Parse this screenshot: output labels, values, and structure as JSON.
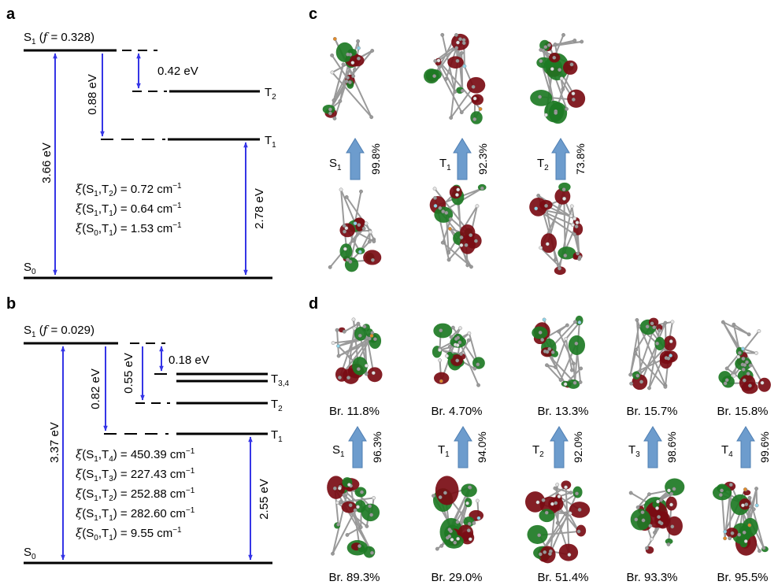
{
  "panels": {
    "a": {
      "letter": "a",
      "s1": {
        "state": "S",
        "sub": "1",
        "f_label": "f",
        "f_value": " = 0.328)"
      },
      "s0": {
        "state": "S",
        "sub": "0"
      },
      "t1": {
        "state": "T",
        "sub": "1"
      },
      "t2": {
        "state": "T",
        "sub": "2"
      },
      "gaps": {
        "s1_s0": "3.66 eV",
        "s1_t1": "0.88 eV",
        "s1_t2": "0.42 eV",
        "t1_s0": "2.78 eV"
      },
      "soc": [
        {
          "bra": "S",
          "bsub": "1",
          "ket": "T",
          "ksub": "2",
          "value": ") = 0.72 cm",
          "exp": "−1"
        },
        {
          "bra": "S",
          "bsub": "1",
          "ket": "T",
          "ksub": "1",
          "value": ") = 0.64 cm",
          "exp": "−1"
        },
        {
          "bra": "S",
          "bsub": "0",
          "ket": "T",
          "ksub": "1",
          "value": ") = 1.53 cm",
          "exp": "−1"
        }
      ]
    },
    "b": {
      "letter": "b",
      "s1": {
        "state": "S",
        "sub": "1",
        "f_label": "f",
        "f_value": " = 0.029)"
      },
      "s0": {
        "state": "S",
        "sub": "0"
      },
      "t1": {
        "state": "T",
        "sub": "1"
      },
      "t2": {
        "state": "T",
        "sub": "2"
      },
      "t34": {
        "state": "T",
        "sub": "3,4"
      },
      "gaps": {
        "s1_s0": "3.37 eV",
        "s1_t1": "0.82 eV",
        "s1_t2": "0.55 eV",
        "s1_t34": "0.18 eV",
        "t1_s0": "2.55 eV"
      },
      "soc": [
        {
          "bra": "S",
          "bsub": "1",
          "ket": "T",
          "ksub": "4",
          "value": ") = 450.39 cm",
          "exp": "−1"
        },
        {
          "bra": "S",
          "bsub": "1",
          "ket": "T",
          "ksub": "3",
          "value": ") = 227.43 cm",
          "exp": "−1"
        },
        {
          "bra": "S",
          "bsub": "1",
          "ket": "T",
          "ksub": "2",
          "value": ") = 252.88 cm",
          "exp": "−1"
        },
        {
          "bra": "S",
          "bsub": "1",
          "ket": "T",
          "ksub": "1",
          "value": ") = 282.60 cm",
          "exp": "−1"
        },
        {
          "bra": "S",
          "bsub": "0",
          "ket": "T",
          "ksub": "1",
          "value": ") = 9.55 cm",
          "exp": "−1"
        }
      ]
    },
    "c": {
      "letter": "c",
      "transitions": [
        {
          "state": "S",
          "sub": "1",
          "pct": "99.8%"
        },
        {
          "state": "T",
          "sub": "1",
          "pct": "92.3%"
        },
        {
          "state": "T",
          "sub": "2",
          "pct": "73.8%"
        }
      ]
    },
    "d": {
      "letter": "d",
      "transitions": [
        {
          "state": "S",
          "sub": "1",
          "pct": "96.3%",
          "br_top": "Br. 11.8%",
          "br_bottom": "Br. 89.3%"
        },
        {
          "state": "T",
          "sub": "1",
          "pct": "94.0%",
          "br_top": "Br. 4.70%",
          "br_bottom": "Br. 29.0%"
        },
        {
          "state": "T",
          "sub": "2",
          "pct": "92.0%",
          "br_top": "Br. 13.3%",
          "br_bottom": "Br. 51.4%"
        },
        {
          "state": "T",
          "sub": "3",
          "pct": "98.6%",
          "br_top": "Br. 15.7%",
          "br_bottom": "Br. 93.3%"
        },
        {
          "state": "T",
          "sub": "4",
          "pct": "99.6%",
          "br_top": "Br. 15.8%",
          "br_bottom": "Br. 95.5%"
        }
      ]
    }
  },
  "symbols": {
    "xi": "ξ",
    "open": "(",
    "comma": ","
  },
  "colors": {
    "arrow": "#3535e6",
    "orbital_positive": "#7a0c14",
    "orbital_negative": "#1d7a24",
    "transition_arrow": "#6d9ccd",
    "carbon": "#9a9a9a",
    "hydrogen": "#e4e4e4",
    "fluorine": "#8fd3e8",
    "boron": "#e08a2a"
  }
}
